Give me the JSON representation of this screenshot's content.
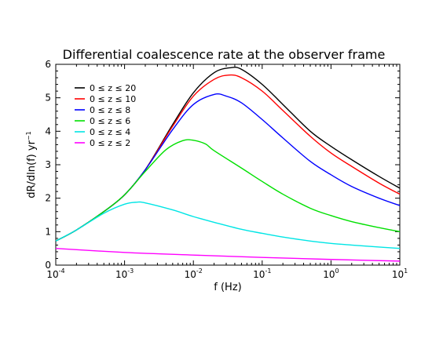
{
  "chart_data": {
    "type": "line",
    "title": "Differential coalescence rate at the observer frame",
    "xlabel": "f (Hz)",
    "ylabel_main": "dR/dln(f) yr",
    "ylabel_sup": "−1",
    "xscale": "log",
    "xlim": [
      0.0001,
      10
    ],
    "ylim": [
      0,
      6
    ],
    "x_ticks": [
      {
        "value": 0.0001,
        "base": "10",
        "exp": "-4"
      },
      {
        "value": 0.001,
        "base": "10",
        "exp": "-3"
      },
      {
        "value": 0.01,
        "base": "10",
        "exp": "-2"
      },
      {
        "value": 0.1,
        "base": "10",
        "exp": "-1"
      },
      {
        "value": 1,
        "base": "10",
        "exp": "0"
      },
      {
        "value": 10,
        "base": "10",
        "exp": "1"
      }
    ],
    "y_ticks": [
      "0",
      "1",
      "2",
      "3",
      "4",
      "5",
      "6"
    ],
    "grid": false,
    "legend_position": "top-left",
    "series": [
      {
        "name": "0 ≤ z ≤ 20",
        "color": "#000000",
        "x": [
          0.0001,
          0.0002,
          0.0005,
          0.001,
          0.002,
          0.005,
          0.01,
          0.02,
          0.035,
          0.05,
          0.1,
          0.2,
          0.5,
          1,
          2,
          5,
          10
        ],
        "y": [
          0.72,
          1.05,
          1.6,
          2.1,
          2.85,
          4.2,
          5.15,
          5.75,
          5.9,
          5.85,
          5.4,
          4.8,
          4.0,
          3.55,
          3.15,
          2.65,
          2.3
        ]
      },
      {
        "name": "0 ≤ z ≤ 10",
        "color": "#ff0000",
        "x": [
          0.0001,
          0.0002,
          0.0005,
          0.001,
          0.002,
          0.005,
          0.01,
          0.02,
          0.033,
          0.05,
          0.1,
          0.2,
          0.5,
          1,
          2,
          5,
          10
        ],
        "y": [
          0.72,
          1.05,
          1.6,
          2.1,
          2.85,
          4.15,
          5.05,
          5.55,
          5.68,
          5.6,
          5.2,
          4.62,
          3.85,
          3.35,
          2.95,
          2.45,
          2.12
        ]
      },
      {
        "name": "0 ≤ z ≤ 8",
        "color": "#0000ff",
        "x": [
          0.0001,
          0.0002,
          0.0005,
          0.001,
          0.002,
          0.005,
          0.01,
          0.02,
          0.03,
          0.05,
          0.1,
          0.2,
          0.5,
          1,
          2,
          5,
          10
        ],
        "y": [
          0.72,
          1.05,
          1.6,
          2.1,
          2.85,
          4.05,
          4.8,
          5.1,
          5.05,
          4.85,
          4.35,
          3.8,
          3.1,
          2.7,
          2.35,
          2.0,
          1.78
        ]
      },
      {
        "name": "0 ≤ z ≤ 6",
        "color": "#00e000",
        "x": [
          0.0001,
          0.0002,
          0.0005,
          0.001,
          0.002,
          0.004,
          0.007,
          0.01,
          0.015,
          0.02,
          0.05,
          0.1,
          0.2,
          0.5,
          1,
          2,
          5,
          10
        ],
        "y": [
          0.72,
          1.05,
          1.6,
          2.1,
          2.8,
          3.45,
          3.72,
          3.73,
          3.62,
          3.42,
          2.9,
          2.5,
          2.12,
          1.7,
          1.48,
          1.3,
          1.12,
          1.0
        ]
      },
      {
        "name": "0 ≤ z ≤ 4",
        "color": "#00e5e5",
        "x": [
          0.0001,
          0.0002,
          0.0005,
          0.001,
          0.0015,
          0.002,
          0.005,
          0.01,
          0.02,
          0.05,
          0.1,
          0.2,
          0.5,
          1,
          2,
          5,
          10
        ],
        "y": [
          0.72,
          1.05,
          1.55,
          1.82,
          1.88,
          1.86,
          1.65,
          1.45,
          1.28,
          1.07,
          0.95,
          0.84,
          0.72,
          0.65,
          0.6,
          0.54,
          0.5
        ]
      },
      {
        "name": "0 ≤ z ≤ 2",
        "color": "#ff00ff",
        "x": [
          0.0001,
          0.001,
          0.01,
          0.1,
          1,
          10
        ],
        "y": [
          0.5,
          0.38,
          0.3,
          0.23,
          0.17,
          0.12
        ]
      }
    ]
  }
}
